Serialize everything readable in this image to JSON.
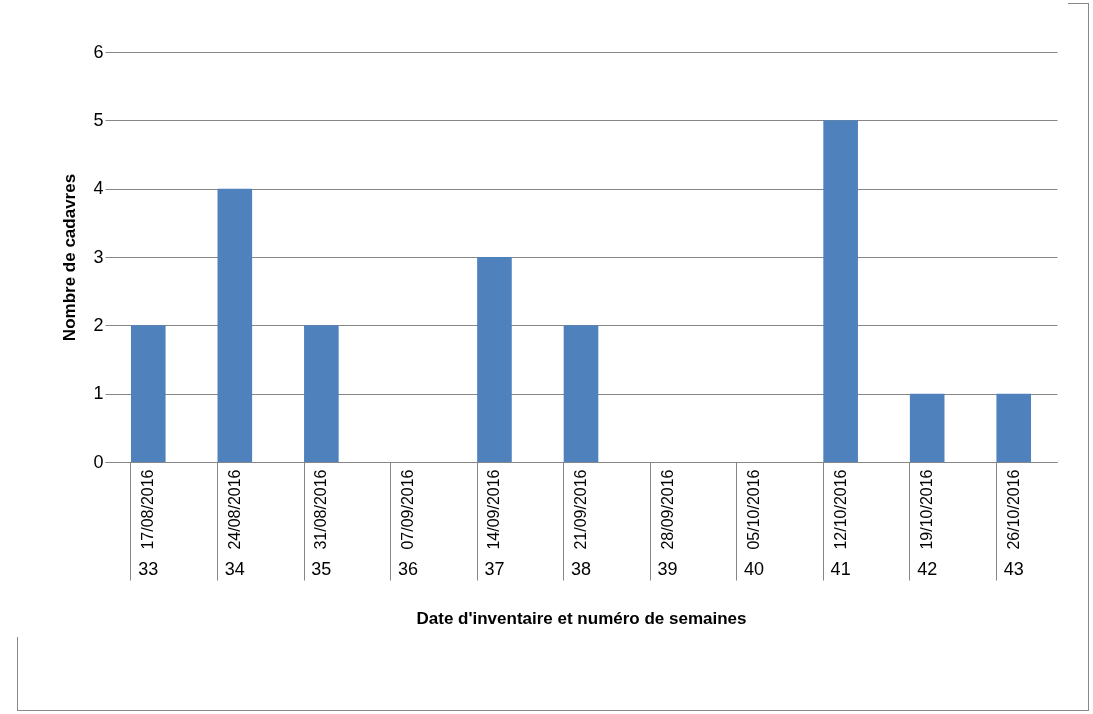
{
  "chart_data": {
    "type": "bar",
    "xlabel": "Date d'inventaire et numéro de semaines",
    "ylabel": "Nombre de cadavres",
    "categories": [
      "17/08/2016",
      "24/08/2016",
      "31/08/2016",
      "07/09/2016",
      "14/09/2016",
      "21/09/2016",
      "28/09/2016",
      "05/10/2016",
      "12/10/2016",
      "19/10/2016",
      "26/10/2016"
    ],
    "values": [
      2,
      4,
      2,
      0,
      3,
      2,
      0,
      0,
      5,
      1,
      1
    ],
    "color": "#4f81bd",
    "ylim": [
      0,
      6
    ],
    "yticks": [
      0,
      1,
      2,
      3,
      4,
      5,
      6
    ],
    "grid": "y",
    "annotations": [
      "33",
      "34",
      "35",
      "36",
      "37",
      "38",
      "39",
      "40",
      "41",
      "42",
      "43"
    ]
  }
}
